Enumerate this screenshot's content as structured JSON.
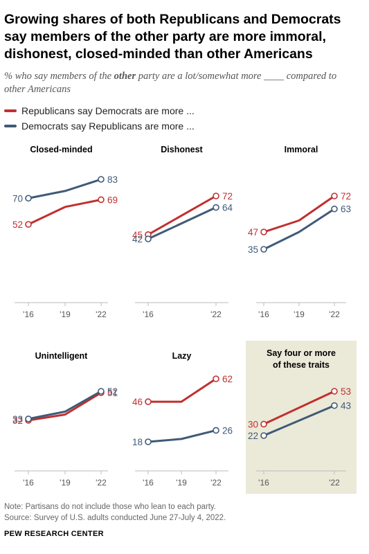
{
  "title": "Growing shares of both Republicans and Democrats say members of the other party are more immoral, dishonest, closed-minded than other Americans",
  "subtitle": {
    "prefix": "% who say members of the ",
    "emphasis": "other",
    "suffix": " party are a lot/somewhat more ____ compared to other Americans"
  },
  "legend": [
    {
      "label": "Republicans say Democrats are more ...",
      "color": "#c0302f"
    },
    {
      "label": "Democrats say Republicans are more ...",
      "color": "#3f5a78"
    }
  ],
  "colors": {
    "republicans": "#c0302f",
    "democrats": "#3f5a78",
    "highlight_bg": "#ebe9d8",
    "axis": "#bbbbbb"
  },
  "chart_data": [
    {
      "type": "line",
      "title": "Closed-minded",
      "x": [
        "'16",
        "'19",
        "'22"
      ],
      "x_tick_labels": [
        "'16",
        "'19",
        "'22"
      ],
      "series": [
        {
          "name": "Republicans say Democrats are more ...",
          "values": [
            52,
            64,
            69
          ],
          "labels": [
            "52",
            "",
            "69"
          ]
        },
        {
          "name": "Democrats say Republicans are more ...",
          "values": [
            70,
            75,
            83
          ],
          "labels": [
            "70",
            "",
            "83"
          ]
        }
      ]
    },
    {
      "type": "line",
      "title": "Dishonest",
      "x": [
        "'16",
        "'22"
      ],
      "x_tick_labels": [
        "'16",
        "'22"
      ],
      "series": [
        {
          "name": "Republicans say Democrats are more ...",
          "values": [
            45,
            72
          ],
          "labels": [
            "45",
            "72"
          ]
        },
        {
          "name": "Democrats say Republicans are more ...",
          "values": [
            42,
            64
          ],
          "labels": [
            "42",
            "64"
          ]
        }
      ]
    },
    {
      "type": "line",
      "title": "Immoral",
      "x": [
        "'16",
        "'19",
        "'22"
      ],
      "x_tick_labels": [
        "'16",
        "'19",
        "'22"
      ],
      "series": [
        {
          "name": "Republicans say Democrats are more ...",
          "values": [
            47,
            55,
            72
          ],
          "labels": [
            "47",
            "",
            "72"
          ]
        },
        {
          "name": "Democrats say Republicans are more ...",
          "values": [
            35,
            47,
            63
          ],
          "labels": [
            "35",
            "",
            "63"
          ]
        }
      ]
    },
    {
      "type": "line",
      "title": "Unintelligent",
      "x": [
        "'16",
        "'19",
        "'22"
      ],
      "x_tick_labels": [
        "'16",
        "'19",
        "'22"
      ],
      "series": [
        {
          "name": "Republicans say Democrats are more ...",
          "values": [
            32,
            36,
            51
          ],
          "labels": [
            "32",
            "",
            "51"
          ]
        },
        {
          "name": "Democrats say Republicans are more ...",
          "values": [
            33,
            38,
            52
          ],
          "labels": [
            "33",
            "",
            "52"
          ]
        }
      ]
    },
    {
      "type": "line",
      "title": "Lazy",
      "x": [
        "'16",
        "'19",
        "'22"
      ],
      "x_tick_labels": [
        "'16",
        "'19",
        "'22"
      ],
      "series": [
        {
          "name": "Republicans say Democrats are more ...",
          "values": [
            46,
            46,
            62
          ],
          "labels": [
            "46",
            "",
            "62"
          ]
        },
        {
          "name": "Democrats say Republicans are more ...",
          "values": [
            18,
            20,
            26
          ],
          "labels": [
            "18",
            "",
            "26"
          ]
        }
      ]
    },
    {
      "type": "line",
      "title": "Say four or more of these traits",
      "highlighted": true,
      "x": [
        "'16",
        "'22"
      ],
      "x_tick_labels": [
        "'16",
        "'22"
      ],
      "series": [
        {
          "name": "Republicans say Democrats are more ...",
          "values": [
            30,
            53
          ],
          "labels": [
            "30",
            "53"
          ]
        },
        {
          "name": "Democrats say Republicans are more ...",
          "values": [
            22,
            43
          ],
          "labels": [
            "22",
            "43"
          ]
        }
      ]
    }
  ],
  "footnote": {
    "note": "Note: Partisans do not include those who lean to each party.",
    "source": "Source: Survey of U.S. adults conducted June 27-July 4, 2022."
  },
  "brand": "PEW RESEARCH CENTER"
}
